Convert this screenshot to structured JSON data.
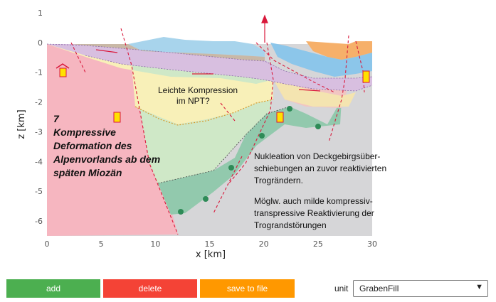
{
  "plot": {
    "xlabel": "x [km]",
    "ylabel": "z [km]",
    "x_ticks": [
      "0",
      "5",
      "10",
      "15",
      "20",
      "25",
      "30"
    ],
    "y_ticks": [
      "1",
      "0",
      "-1",
      "-2",
      "-3",
      "-4",
      "-5",
      "-6"
    ],
    "xlim": [
      0,
      30
    ],
    "ylim": [
      -6.5,
      1
    ]
  },
  "annotations": {
    "stage_title": [
      "7",
      "Kompressive",
      "Deformation des",
      "Alpenvorlands ab dem",
      "späten Miozän"
    ],
    "compression_note": [
      "Leichte Kompression",
      "im NPT?"
    ],
    "nucleation_note": [
      "Nukleation von Deckgebirgsüber-",
      "schiebungen an zuvor reaktivierten",
      "Trogrändern."
    ],
    "reactivation_note": [
      "Mögl​w. auch milde kompressiv-",
      "transpressive Reaktivierung der",
      " Trograndstörungen"
    ]
  },
  "toolbar": {
    "add_label": "add",
    "delete_label": "delete",
    "save_label": "save to file",
    "unit_label": "unit",
    "unit_value": "GrabenFill"
  }
}
